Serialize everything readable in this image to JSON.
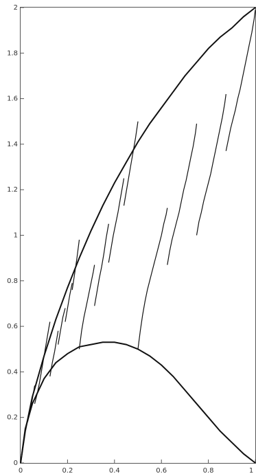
{
  "chart_data": {
    "type": "line",
    "title": "",
    "xlabel": "",
    "ylabel": "",
    "xlim": [
      0,
      1
    ],
    "ylim": [
      0,
      2
    ],
    "grid": false,
    "x_ticks": [
      {
        "value": 0,
        "label": "0"
      },
      {
        "value": 0.2,
        "label": "0.2"
      },
      {
        "value": 0.4,
        "label": "0.4"
      },
      {
        "value": 0.6,
        "label": "0.6"
      },
      {
        "value": 0.8,
        "label": "0.8"
      },
      {
        "value": 1,
        "label": "1"
      }
    ],
    "y_ticks": [
      {
        "value": 0,
        "label": "0"
      },
      {
        "value": 0.2,
        "label": "0.2"
      },
      {
        "value": 0.4,
        "label": "0.4"
      },
      {
        "value": 0.6,
        "label": "0.6"
      },
      {
        "value": 0.8,
        "label": "0.8"
      },
      {
        "value": 1,
        "label": "1"
      },
      {
        "value": 1.2,
        "label": "1.2"
      },
      {
        "value": 1.4,
        "label": "1.4"
      },
      {
        "value": 1.6,
        "label": "1.6"
      },
      {
        "value": 1.8,
        "label": "1.8"
      },
      {
        "value": 2,
        "label": "2"
      }
    ],
    "colors": {
      "line": "#111111",
      "axis": "#555555",
      "text": "#333333"
    },
    "series": [
      {
        "x": [
          0,
          0.02,
          0.05,
          0.1,
          0.15,
          0.2,
          0.25,
          0.3,
          0.35,
          0.4,
          0.45,
          0.5,
          0.55,
          0.6,
          0.65,
          0.7,
          0.75,
          0.8,
          0.85,
          0.9,
          0.95,
          1
        ],
        "y": [
          0,
          0.14,
          0.29,
          0.47,
          0.63,
          0.77,
          0.9,
          1.02,
          1.13,
          1.23,
          1.32,
          1.41,
          1.49,
          1.56,
          1.63,
          1.7,
          1.76,
          1.82,
          1.87,
          1.91,
          1.96,
          2.0
        ]
      },
      {
        "x": [
          0,
          0.02,
          0.05,
          0.1,
          0.15,
          0.2,
          0.25,
          0.3,
          0.35,
          0.38,
          0.4,
          0.45,
          0.5,
          0.55,
          0.6,
          0.65,
          0.7,
          0.75,
          0.8,
          0.85,
          0.9,
          0.95,
          1
        ],
        "y": [
          0,
          0.15,
          0.26,
          0.37,
          0.44,
          0.48,
          0.51,
          0.52,
          0.53,
          0.53,
          0.53,
          0.52,
          0.5,
          0.47,
          0.43,
          0.38,
          0.32,
          0.26,
          0.2,
          0.14,
          0.09,
          0.04,
          0
        ]
      },
      {
        "x": [
          0.5,
          0.51,
          0.52,
          0.53,
          0.54,
          0.55,
          0.56,
          0.57,
          0.58,
          0.59,
          0.6,
          0.61,
          0.62,
          0.625
        ],
        "y": [
          0.5,
          0.58,
          0.65,
          0.71,
          0.76,
          0.8,
          0.84,
          0.88,
          0.92,
          0.96,
          1.0,
          1.05,
          1.09,
          1.12
        ]
      },
      {
        "x": [
          0.625,
          0.635,
          0.645,
          0.655,
          0.665,
          0.675,
          0.685,
          0.695,
          0.705,
          0.715,
          0.725,
          0.735,
          0.745,
          0.75
        ],
        "y": [
          0.87,
          0.93,
          0.98,
          1.02,
          1.06,
          1.1,
          1.15,
          1.2,
          1.24,
          1.29,
          1.34,
          1.39,
          1.45,
          1.49
        ]
      },
      {
        "x": [
          0.75,
          0.76,
          0.77,
          0.78,
          0.79,
          0.8,
          0.81,
          0.82,
          0.83,
          0.84,
          0.85,
          0.86,
          0.87,
          0.875
        ],
        "y": [
          1.0,
          1.06,
          1.1,
          1.15,
          1.19,
          1.23,
          1.27,
          1.32,
          1.37,
          1.42,
          1.47,
          1.52,
          1.58,
          1.62
        ]
      },
      {
        "x": [
          0.875,
          0.885,
          0.895,
          0.905,
          0.915,
          0.925,
          0.935,
          0.945,
          0.955,
          0.965,
          0.975,
          0.985,
          0.995,
          1.0
        ],
        "y": [
          1.37,
          1.42,
          1.47,
          1.51,
          1.55,
          1.6,
          1.64,
          1.69,
          1.74,
          1.79,
          1.84,
          1.89,
          1.95,
          1.99
        ]
      },
      {
        "x": [
          0.25,
          0.26,
          0.27,
          0.28,
          0.29,
          0.3,
          0.31,
          0.315
        ],
        "y": [
          0.5,
          0.58,
          0.64,
          0.69,
          0.74,
          0.79,
          0.84,
          0.87
        ]
      },
      {
        "x": [
          0.315,
          0.325,
          0.335,
          0.345,
          0.355,
          0.365,
          0.375
        ],
        "y": [
          0.69,
          0.75,
          0.81,
          0.86,
          0.92,
          0.99,
          1.05
        ]
      },
      {
        "x": [
          0.375,
          0.385,
          0.395,
          0.405,
          0.415,
          0.425,
          0.435,
          0.44
        ],
        "y": [
          0.88,
          0.94,
          1.0,
          1.05,
          1.1,
          1.16,
          1.22,
          1.25
        ]
      },
      {
        "x": [
          0.44,
          0.45,
          0.46,
          0.47,
          0.48,
          0.49,
          0.5
        ],
        "y": [
          1.13,
          1.19,
          1.25,
          1.31,
          1.37,
          1.43,
          1.5
        ]
      },
      {
        "x": [
          0.125,
          0.135,
          0.145,
          0.155,
          0.16
        ],
        "y": [
          0.38,
          0.44,
          0.49,
          0.55,
          0.58
        ]
      },
      {
        "x": [
          0.16,
          0.17,
          0.18,
          0.19
        ],
        "y": [
          0.52,
          0.58,
          0.64,
          0.68
        ]
      },
      {
        "x": [
          0.19,
          0.2,
          0.21,
          0.22
        ],
        "y": [
          0.62,
          0.68,
          0.74,
          0.79
        ]
      },
      {
        "x": [
          0.22,
          0.23,
          0.24,
          0.25
        ],
        "y": [
          0.76,
          0.83,
          0.9,
          0.98
        ]
      },
      {
        "x": [
          0.06,
          0.07,
          0.08,
          0.09,
          0.1,
          0.11,
          0.12,
          0.125
        ],
        "y": [
          0.26,
          0.3,
          0.35,
          0.41,
          0.47,
          0.53,
          0.59,
          0.62
        ]
      },
      {
        "x": [
          0.03,
          0.04,
          0.05,
          0.06
        ],
        "y": [
          0.18,
          0.23,
          0.28,
          0.34
        ]
      }
    ]
  }
}
